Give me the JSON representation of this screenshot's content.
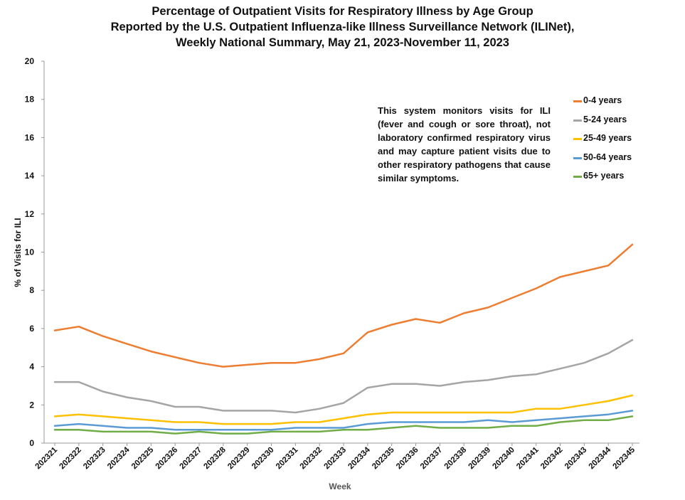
{
  "title": {
    "line1": "Percentage of Outpatient Visits for Respiratory Illness by Age Group",
    "line2": "Reported by the U.S. Outpatient Influenza-like Illness Surveillance Network (ILINet),",
    "line3": "Weekly National Summary, May 21, 2023-November 11, 2023"
  },
  "annotation": "This system monitors visits for ILI (fever and cough or sore throat), not laboratory confirmed respiratory virus and may capture patient visits due to other respiratory pathogens that cause similar symptoms.",
  "chart_data": {
    "type": "line",
    "xlabel": "Week",
    "ylabel": "% of Visits for ILI",
    "ylim": [
      0,
      20
    ],
    "yticks": [
      0,
      2,
      4,
      6,
      8,
      10,
      12,
      14,
      16,
      18,
      20
    ],
    "grid": false,
    "legend_position": "top-right",
    "categories": [
      "202321",
      "202322",
      "202323",
      "202324",
      "202325",
      "202326",
      "202327",
      "202328",
      "202329",
      "202330",
      "202331",
      "202332",
      "202333",
      "202334",
      "202335",
      "202336",
      "202337",
      "202338",
      "202339",
      "202340",
      "202341",
      "202342",
      "202343",
      "202344",
      "202345"
    ],
    "series": [
      {
        "name": "0-4 years",
        "color": "#ED7D31",
        "values": [
          5.9,
          6.1,
          5.6,
          5.2,
          4.8,
          4.5,
          4.2,
          4.0,
          4.1,
          4.2,
          4.2,
          4.4,
          4.7,
          5.8,
          6.2,
          6.5,
          6.3,
          6.8,
          7.1,
          7.6,
          8.1,
          8.7,
          9.0,
          9.3,
          10.4
        ]
      },
      {
        "name": "5-24 years",
        "color": "#A5A5A5",
        "values": [
          3.2,
          3.2,
          2.7,
          2.4,
          2.2,
          1.9,
          1.9,
          1.7,
          1.7,
          1.7,
          1.6,
          1.8,
          2.1,
          2.9,
          3.1,
          3.1,
          3.0,
          3.2,
          3.3,
          3.5,
          3.6,
          3.9,
          4.2,
          4.7,
          5.4
        ]
      },
      {
        "name": "25-49 years",
        "color": "#FFC000",
        "values": [
          1.4,
          1.5,
          1.4,
          1.3,
          1.2,
          1.1,
          1.1,
          1.0,
          1.0,
          1.0,
          1.1,
          1.1,
          1.3,
          1.5,
          1.6,
          1.6,
          1.6,
          1.6,
          1.6,
          1.6,
          1.8,
          1.8,
          2.0,
          2.2,
          2.5
        ]
      },
      {
        "name": "50-64 years",
        "color": "#5B9BD5",
        "values": [
          0.9,
          1.0,
          0.9,
          0.8,
          0.8,
          0.7,
          0.7,
          0.7,
          0.7,
          0.7,
          0.8,
          0.8,
          0.8,
          1.0,
          1.1,
          1.1,
          1.1,
          1.1,
          1.2,
          1.1,
          1.2,
          1.3,
          1.4,
          1.5,
          1.7
        ]
      },
      {
        "name": "65+ years",
        "color": "#70AD47",
        "values": [
          0.7,
          0.7,
          0.6,
          0.6,
          0.6,
          0.5,
          0.6,
          0.5,
          0.5,
          0.6,
          0.6,
          0.6,
          0.7,
          0.7,
          0.8,
          0.9,
          0.8,
          0.8,
          0.8,
          0.9,
          0.9,
          1.1,
          1.2,
          1.2,
          1.4
        ]
      }
    ]
  }
}
